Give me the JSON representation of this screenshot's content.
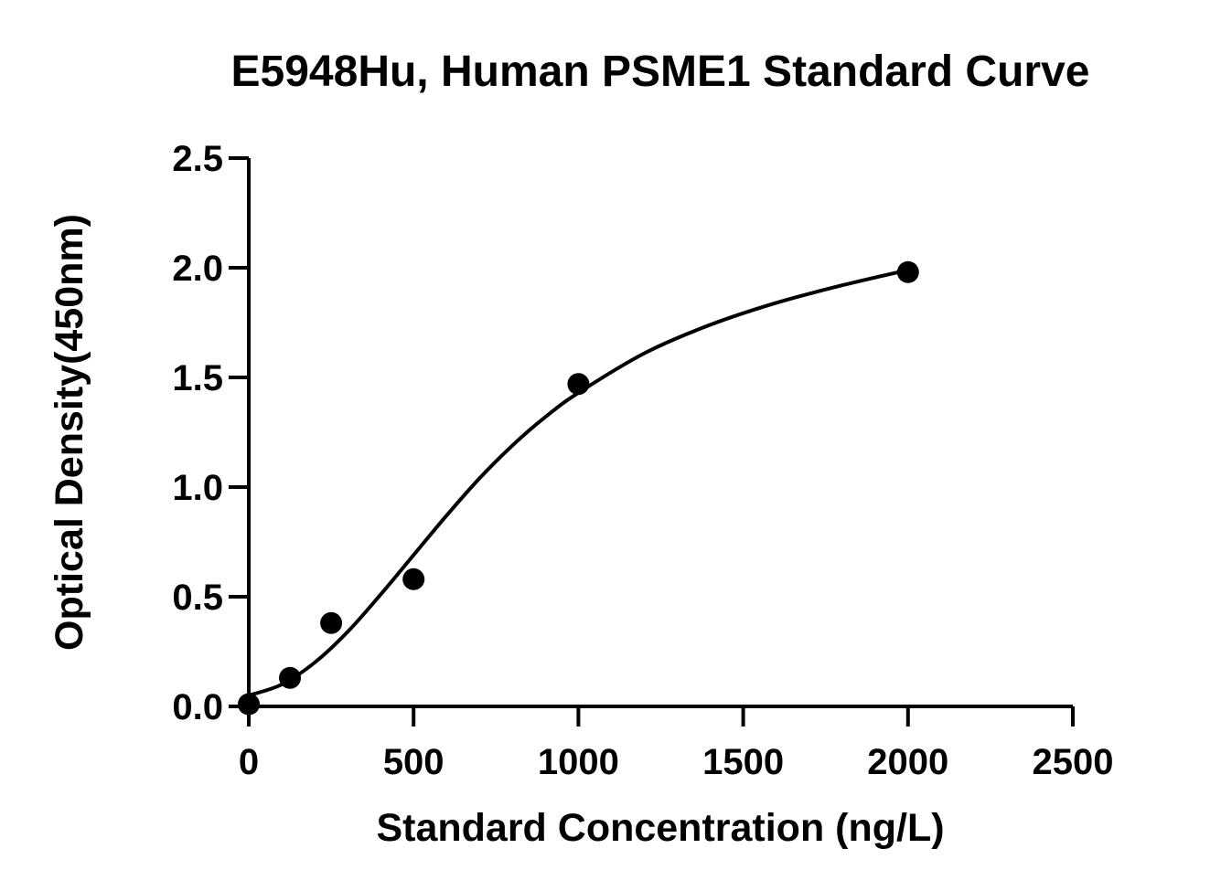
{
  "chart_data": {
    "type": "scatter",
    "title": "E5948Hu, Human PSME1 Standard Curve",
    "xlabel": "Standard Concentration (ng/L)",
    "ylabel": "Optical Density(450nm)",
    "xlim": [
      0,
      2500
    ],
    "ylim": [
      0,
      2.5
    ],
    "x_ticks": [
      "0",
      "500",
      "1000",
      "1500",
      "2000",
      "2500"
    ],
    "y_ticks": [
      "0.0",
      "0.5",
      "1.0",
      "1.5",
      "2.0",
      "2.5"
    ],
    "grid": false,
    "legend": "none",
    "series": [
      {
        "x": [
          0,
          125,
          250,
          500,
          1000,
          2000
        ],
        "y": [
          0.01,
          0.13,
          0.38,
          0.58,
          1.47,
          1.98
        ]
      }
    ],
    "fit_curve": {
      "x": [
        0,
        100,
        200,
        300,
        400,
        500,
        600,
        700,
        800,
        900,
        1000,
        1200,
        1400,
        1600,
        1800,
        2000
      ],
      "y": [
        0.05,
        0.1,
        0.2,
        0.34,
        0.51,
        0.69,
        0.87,
        1.04,
        1.19,
        1.32,
        1.43,
        1.61,
        1.74,
        1.84,
        1.92,
        1.99
      ]
    }
  }
}
